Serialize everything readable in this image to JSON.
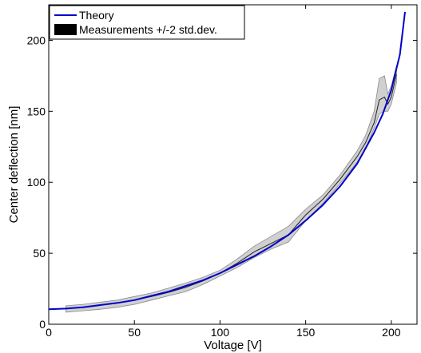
{
  "chart_data": {
    "type": "line",
    "title": "",
    "xlabel": "Voltage [V]",
    "ylabel": "Center deflection [nm]",
    "xlim": [
      0,
      215
    ],
    "ylim": [
      0,
      225
    ],
    "xticks": [
      0,
      50,
      100,
      150,
      200
    ],
    "yticks": [
      0,
      50,
      100,
      150,
      200
    ],
    "grid": false,
    "legend_position": "top-left",
    "series": [
      {
        "name": "Theory",
        "kind": "line",
        "color": "#0000cc",
        "x": [
          0,
          10,
          20,
          30,
          40,
          50,
          60,
          70,
          80,
          90,
          100,
          110,
          120,
          130,
          140,
          150,
          160,
          170,
          180,
          190,
          195,
          200,
          205,
          208
        ],
        "y": [
          10.5,
          11,
          12,
          13.5,
          15,
          17,
          20,
          23,
          27,
          31,
          36,
          42,
          48,
          55,
          63,
          73,
          84,
          97,
          113,
          135,
          148,
          165,
          190,
          220
        ]
      },
      {
        "name": "Measurements +/-2 std.dev.",
        "kind": "band",
        "color": "#000000",
        "fill": "#d0d0d0",
        "x": [
          10,
          20,
          30,
          40,
          50,
          60,
          70,
          80,
          90,
          100,
          110,
          120,
          130,
          140,
          150,
          160,
          170,
          180,
          185,
          190,
          193,
          196,
          198,
          200,
          203
        ],
        "mean": [
          11,
          12,
          13.5,
          15,
          17,
          19.5,
          22.5,
          26,
          30.5,
          36,
          43,
          51,
          57,
          63,
          77,
          88,
          102,
          118,
          128,
          142,
          158,
          160,
          155,
          160,
          176
        ],
        "lower": [
          8.5,
          9.5,
          10.5,
          12,
          14,
          17,
          20,
          23,
          28,
          34,
          40,
          47,
          53,
          58,
          73,
          85,
          99,
          114,
          124,
          138,
          148,
          150,
          150,
          155,
          170
        ],
        "upper": [
          13,
          14,
          15.5,
          17,
          19.5,
          22,
          25.5,
          29,
          33,
          38,
          46,
          55,
          62,
          69,
          81,
          91,
          105,
          122,
          133,
          150,
          173,
          175,
          162,
          168,
          182
        ]
      }
    ]
  }
}
